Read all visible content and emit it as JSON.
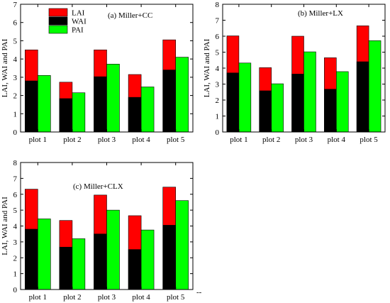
{
  "colors": {
    "LAI": "#ff0000",
    "WAI": "#000000",
    "PAI": "#00ff00"
  },
  "legend": [
    "LAI",
    "WAI",
    "PAI"
  ],
  "trailing_mark": "--",
  "chart_data": [
    {
      "type": "bar",
      "title": "(a) Miller+CC",
      "ylabel": "LAI, WAI and PAI",
      "xlabel": "",
      "ylim": [
        0,
        7
      ],
      "yticks": [
        0,
        1,
        2,
        3,
        4,
        5,
        6,
        7
      ],
      "categories": [
        "plot 1",
        "plot 2",
        "plot 3",
        "plot 4",
        "plot 5"
      ],
      "series": [
        {
          "name": "LAI",
          "values": [
            4.5,
            2.73,
            4.5,
            3.15,
            5.05
          ]
        },
        {
          "name": "WAI",
          "values": [
            2.8,
            1.83,
            3.03,
            1.9,
            3.4
          ]
        },
        {
          "name": "PAI",
          "values": [
            3.1,
            2.15,
            3.72,
            2.47,
            4.1
          ]
        }
      ]
    },
    {
      "type": "bar",
      "title": "(b) Miller+LX",
      "ylabel": "LAI, WAI and PAI",
      "xlabel": "",
      "ylim": [
        0,
        8
      ],
      "yticks": [
        0,
        1,
        2,
        3,
        4,
        5,
        6,
        7,
        8
      ],
      "categories": [
        "plot 1",
        "plot 2",
        "plot 3",
        "plot 4",
        "plot 5"
      ],
      "series": [
        {
          "name": "LAI",
          "values": [
            6.02,
            4.03,
            6.0,
            4.65,
            6.65
          ]
        },
        {
          "name": "WAI",
          "values": [
            3.7,
            2.58,
            3.63,
            2.68,
            4.4
          ]
        },
        {
          "name": "PAI",
          "values": [
            4.32,
            3.02,
            5.02,
            3.78,
            5.72
          ]
        }
      ]
    },
    {
      "type": "bar",
      "title": "(c) Miller+CLX",
      "ylabel": "LAI, WAI and PAI",
      "xlabel": "",
      "ylim": [
        0,
        8
      ],
      "yticks": [
        0,
        1,
        2,
        3,
        4,
        5,
        6,
        7,
        8
      ],
      "categories": [
        "plot 1",
        "plot 2",
        "plot 3",
        "plot 4",
        "plot 5"
      ],
      "series": [
        {
          "name": "LAI",
          "values": [
            6.32,
            4.35,
            5.95,
            4.65,
            6.45
          ]
        },
        {
          "name": "WAI",
          "values": [
            3.8,
            2.67,
            3.5,
            2.52,
            4.05
          ]
        },
        {
          "name": "PAI",
          "values": [
            4.45,
            3.2,
            5.0,
            3.75,
            5.6
          ]
        }
      ]
    }
  ]
}
